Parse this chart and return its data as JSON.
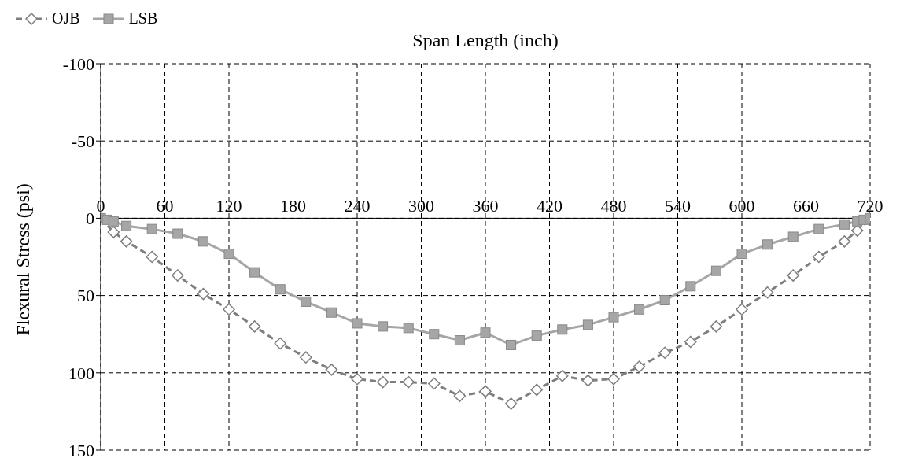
{
  "chart_data": {
    "type": "line",
    "xlabel": "Span Length (inch)",
    "ylabel": "Flexural Stress (psi)",
    "xlim": [
      0,
      720
    ],
    "xticks": [
      0,
      60,
      120,
      180,
      240,
      300,
      360,
      420,
      480,
      540,
      600,
      660,
      720
    ],
    "ylim": [
      150,
      -100
    ],
    "yticks": [
      -100,
      -50,
      0,
      50,
      100,
      150
    ],
    "grid": true,
    "legend": "top left",
    "series": [
      {
        "name": "OJB",
        "color": "#7f7f7f",
        "marker": "diamond",
        "line_style": "dashed",
        "x": [
          0,
          6,
          12,
          24,
          48,
          72,
          96,
          120,
          144,
          168,
          192,
          216,
          240,
          264,
          288,
          312,
          336,
          360,
          384,
          408,
          432,
          456,
          480,
          504,
          528,
          552,
          576,
          600,
          624,
          648,
          672,
          696,
          708,
          714,
          720
        ],
        "values": [
          0,
          null,
          9,
          15,
          25,
          37,
          49,
          59,
          70,
          81,
          90,
          98,
          104,
          106,
          106,
          107,
          115,
          112,
          120,
          111,
          102,
          105,
          104,
          96,
          87,
          80,
          70,
          59,
          48,
          37,
          25,
          15,
          8,
          null,
          0
        ]
      },
      {
        "name": "LSB",
        "color": "#a6a6a6",
        "marker": "square",
        "line_style": "solid",
        "x": [
          0,
          6,
          12,
          24,
          48,
          72,
          96,
          120,
          144,
          168,
          192,
          216,
          240,
          264,
          288,
          312,
          336,
          360,
          384,
          408,
          432,
          456,
          480,
          504,
          528,
          552,
          576,
          600,
          624,
          648,
          672,
          696,
          708,
          714,
          720
        ],
        "values": [
          0,
          1,
          2,
          5,
          7,
          10,
          15,
          23,
          35,
          46,
          54,
          61,
          68,
          70,
          71,
          75,
          79,
          74,
          82,
          76,
          72,
          69,
          64,
          59,
          53,
          44,
          34,
          23,
          17,
          12,
          7,
          4,
          2,
          1,
          0
        ]
      }
    ]
  }
}
